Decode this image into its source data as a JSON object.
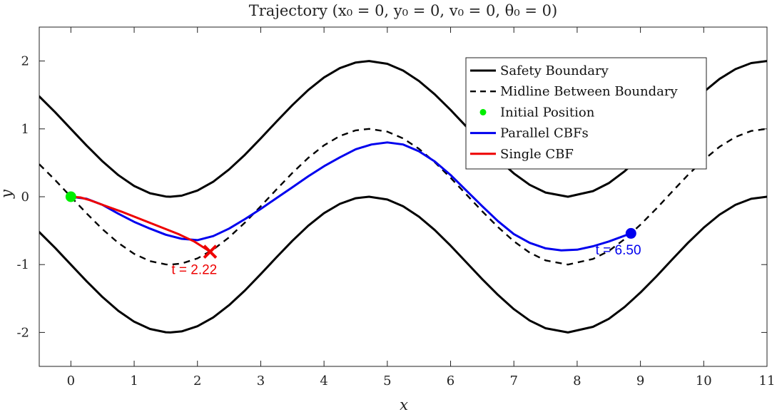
{
  "chart_data": {
    "type": "line",
    "title": "Trajectory (x₀ = 0, y₀ = 0, v₀ = 0, θ₀ = 0)",
    "xlabel": "x",
    "ylabel": "y",
    "xlim": [
      -0.5,
      11
    ],
    "ylim": [
      -2.5,
      2.5
    ],
    "xticks": [
      0,
      1,
      2,
      3,
      4,
      5,
      6,
      7,
      8,
      9,
      10,
      11
    ],
    "yticks": [
      -2,
      -1,
      0,
      1,
      2
    ],
    "ytick_labels": [
      "-2",
      "-1",
      "0",
      "1",
      "2"
    ],
    "grid": false,
    "legend_position": "top-right",
    "legend": [
      {
        "label": "Safety Boundary",
        "style": "solid",
        "color": "#000000"
      },
      {
        "label": "Midline Between Boundary",
        "style": "dashed",
        "color": "#000000"
      },
      {
        "label": "Initial Position",
        "style": "marker",
        "color": "#00ee00"
      },
      {
        "label": "Parallel CBFs",
        "style": "solid",
        "color": "#0000ee"
      },
      {
        "label": "Single CBF",
        "style": "solid",
        "color": "#ee0000"
      }
    ],
    "series": [
      {
        "name": "Safety Boundary (upper)",
        "color": "#000000",
        "x": [
          -0.5,
          -0.25,
          0,
          0.25,
          0.5,
          0.75,
          1,
          1.25,
          1.5,
          1.5708,
          1.75,
          2,
          2.25,
          2.5,
          2.75,
          3,
          3.25,
          3.5,
          3.75,
          4,
          4.25,
          4.5,
          4.7124,
          5,
          5.25,
          5.5,
          5.75,
          6,
          6.25,
          6.5,
          6.75,
          7,
          7.25,
          7.5,
          7.854,
          8.25,
          8.5,
          8.75,
          9,
          9.25,
          9.5,
          9.75,
          10,
          10.25,
          10.5,
          10.75,
          11
        ],
        "y": [
          1.479,
          1.247,
          1.0,
          0.753,
          0.521,
          0.318,
          0.159,
          0.051,
          0.003,
          0.0,
          0.016,
          0.091,
          0.222,
          0.402,
          0.619,
          0.859,
          1.108,
          1.351,
          1.572,
          1.757,
          1.895,
          1.978,
          2.0,
          1.959,
          1.859,
          1.706,
          1.509,
          1.279,
          1.033,
          0.785,
          0.552,
          0.343,
          0.175,
          0.062,
          0.0,
          0.083,
          0.201,
          0.375,
          0.588,
          0.824,
          1.075,
          1.319,
          1.544,
          1.736,
          1.88,
          1.97,
          2.0
        ]
      },
      {
        "name": "Safety Boundary (lower)",
        "color": "#000000",
        "x": [
          -0.5,
          -0.25,
          0,
          0.25,
          0.5,
          0.75,
          1,
          1.25,
          1.5,
          1.5708,
          1.75,
          2,
          2.25,
          2.5,
          2.75,
          3,
          3.25,
          3.5,
          3.75,
          4,
          4.25,
          4.5,
          4.7124,
          5,
          5.25,
          5.5,
          5.75,
          6,
          6.25,
          6.5,
          6.75,
          7,
          7.25,
          7.5,
          7.854,
          8.25,
          8.5,
          8.75,
          9,
          9.25,
          9.5,
          9.75,
          10,
          10.25,
          10.5,
          10.75,
          11
        ],
        "y": [
          -0.521,
          -0.753,
          -1.0,
          -1.247,
          -1.479,
          -1.682,
          -1.841,
          -1.949,
          -1.997,
          -2.0,
          -1.984,
          -1.909,
          -1.778,
          -1.598,
          -1.381,
          -1.141,
          -0.892,
          -0.649,
          -0.428,
          -0.243,
          -0.105,
          -0.022,
          0.0,
          -0.041,
          -0.141,
          -0.294,
          -0.491,
          -0.721,
          -0.967,
          -1.215,
          -1.448,
          -1.657,
          -1.825,
          -1.938,
          -2.0,
          -1.917,
          -1.799,
          -1.625,
          -1.412,
          -1.176,
          -0.925,
          -0.681,
          -0.456,
          -0.264,
          -0.12,
          -0.03,
          0.0
        ]
      },
      {
        "name": "Midline Between Boundary",
        "color": "#000000",
        "x": [
          -0.5,
          -0.25,
          0,
          0.25,
          0.5,
          0.75,
          1,
          1.25,
          1.5,
          1.5708,
          1.75,
          2,
          2.25,
          2.5,
          2.75,
          3,
          3.25,
          3.5,
          3.75,
          4,
          4.25,
          4.5,
          4.7124,
          5,
          5.25,
          5.5,
          5.75,
          6,
          6.25,
          6.5,
          6.75,
          7,
          7.25,
          7.5,
          7.854,
          8.25,
          8.5,
          8.75,
          9,
          9.25,
          9.5,
          9.75,
          10,
          10.25,
          10.5,
          10.75,
          11
        ],
        "y": [
          0.479,
          0.247,
          0.0,
          -0.247,
          -0.479,
          -0.682,
          -0.841,
          -0.949,
          -0.997,
          -1.0,
          -0.984,
          -0.909,
          -0.778,
          -0.598,
          -0.381,
          -0.141,
          0.108,
          0.351,
          0.572,
          0.757,
          0.895,
          0.978,
          1.0,
          0.959,
          0.859,
          0.706,
          0.509,
          0.279,
          0.033,
          -0.215,
          -0.448,
          -0.657,
          -0.825,
          -0.938,
          -1.0,
          -0.917,
          -0.799,
          -0.625,
          -0.412,
          -0.176,
          0.075,
          0.319,
          0.544,
          0.736,
          0.88,
          0.97,
          1.0
        ]
      },
      {
        "name": "Parallel CBFs",
        "color": "#0000ee",
        "x": [
          0,
          0.25,
          0.5,
          0.75,
          1.0,
          1.25,
          1.5,
          1.75,
          2.0,
          2.25,
          2.5,
          2.75,
          3.0,
          3.25,
          3.5,
          3.75,
          4.0,
          4.25,
          4.5,
          4.75,
          5.0,
          5.25,
          5.5,
          5.75,
          6.0,
          6.25,
          6.5,
          6.75,
          7.0,
          7.25,
          7.5,
          7.75,
          8.0,
          8.25,
          8.5,
          8.85
        ],
        "y": [
          0.0,
          -0.03,
          -0.12,
          -0.25,
          -0.37,
          -0.47,
          -0.56,
          -0.62,
          -0.64,
          -0.58,
          -0.47,
          -0.33,
          -0.18,
          -0.02,
          0.14,
          0.3,
          0.45,
          0.58,
          0.7,
          0.77,
          0.8,
          0.77,
          0.67,
          0.52,
          0.32,
          0.09,
          -0.14,
          -0.36,
          -0.55,
          -0.68,
          -0.76,
          -0.79,
          -0.78,
          -0.73,
          -0.66,
          -0.54
        ]
      },
      {
        "name": "Single CBF",
        "color": "#ee0000",
        "x": [
          0,
          0.15,
          0.3,
          0.5,
          0.8,
          1.1,
          1.4,
          1.7,
          1.95,
          2.05,
          2.2
        ],
        "y": [
          0.0,
          -0.01,
          -0.05,
          -0.12,
          -0.22,
          -0.33,
          -0.44,
          -0.55,
          -0.66,
          -0.72,
          -0.81
        ]
      }
    ],
    "markers": [
      {
        "name": "Initial Position",
        "x": 0,
        "y": 0,
        "shape": "circle",
        "color": "#00ee00"
      },
      {
        "name": "Parallel CBFs end",
        "x": 8.85,
        "y": -0.54,
        "shape": "circle",
        "color": "#0000ee"
      },
      {
        "name": "Single CBF end",
        "x": 2.2,
        "y": -0.81,
        "shape": "cross",
        "color": "#ee0000"
      }
    ],
    "annotations": [
      {
        "text": "t = 2.22",
        "x": 1.95,
        "y": -1.14,
        "color": "#ee0000"
      },
      {
        "text": "t = 6.50",
        "x": 8.65,
        "y": -0.85,
        "color": "#0000ee"
      }
    ]
  }
}
